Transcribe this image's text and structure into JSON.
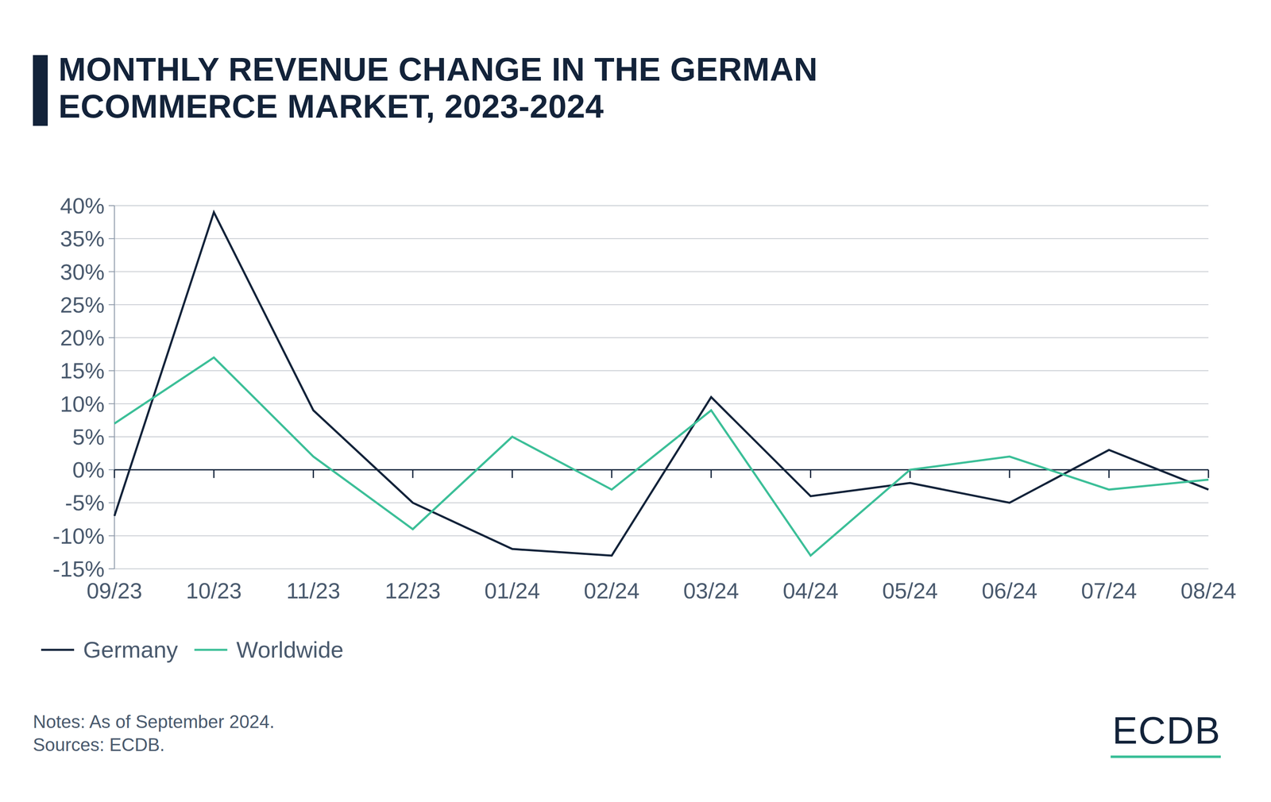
{
  "chart_data": {
    "type": "line",
    "title": "MONTHLY REVENUE CHANGE IN THE GERMAN ECOMMERCE MARKET, 2023-2024",
    "notes": "Notes: As of September 2024.",
    "source": "Sources: ECDB.",
    "logo": "ECDB",
    "categories": [
      "09/23",
      "10/23",
      "11/23",
      "12/23",
      "01/24",
      "02/24",
      "03/24",
      "04/24",
      "05/24",
      "06/24",
      "07/24",
      "08/24"
    ],
    "series": [
      {
        "name": "Germany",
        "color": "#13233a",
        "values": [
          -7,
          39,
          9,
          -5,
          -12,
          -13,
          11,
          -4,
          -2,
          -5,
          3,
          -3
        ]
      },
      {
        "name": "Worldwide",
        "color": "#3cbf98",
        "values": [
          7,
          17,
          2,
          -9,
          5,
          -3,
          9,
          -13,
          0,
          2,
          -3,
          -1.5
        ]
      }
    ],
    "ylim": [
      -15,
      40
    ],
    "yticks": [
      {
        "value": -15,
        "label": "-15%"
      },
      {
        "value": -10,
        "label": "-10%"
      },
      {
        "value": -5,
        "label": "-5%"
      },
      {
        "value": 0,
        "label": "0%"
      },
      {
        "value": 5,
        "label": "5%"
      },
      {
        "value": 10,
        "label": "10%"
      },
      {
        "value": 15,
        "label": "15%"
      },
      {
        "value": 20,
        "label": "20%"
      },
      {
        "value": 25,
        "label": "25%"
      },
      {
        "value": 30,
        "label": "30%"
      },
      {
        "value": 35,
        "label": "35%"
      },
      {
        "value": 40,
        "label": "40%"
      }
    ],
    "grid": true,
    "legend": "bottom-left"
  }
}
